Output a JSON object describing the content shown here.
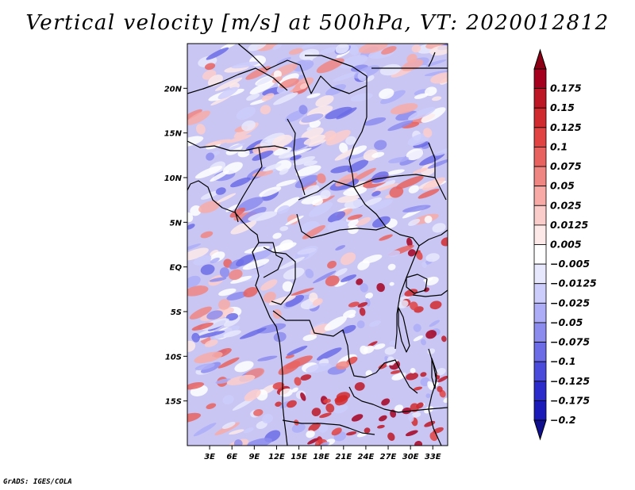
{
  "title": "Vertical velocity [m/s] at 500hPa, VT: 2020012812",
  "credit": "GrADS: IGES/COLA",
  "map": {
    "variable": "Vertical velocity",
    "units": "m/s",
    "level": "500hPa",
    "valid_time": "2020012812",
    "lon_range": [
      0,
      35
    ],
    "lat_range": [
      -20,
      25
    ],
    "lat_ticks": [
      {
        "value": 20,
        "label": "20N"
      },
      {
        "value": 15,
        "label": "15N"
      },
      {
        "value": 10,
        "label": "10N"
      },
      {
        "value": 5,
        "label": "5N"
      },
      {
        "value": 0,
        "label": "EQ"
      },
      {
        "value": -5,
        "label": "5S"
      },
      {
        "value": -10,
        "label": "10S"
      },
      {
        "value": -15,
        "label": "15S"
      }
    ],
    "lon_ticks": [
      {
        "value": 3,
        "label": "3E"
      },
      {
        "value": 6,
        "label": "6E"
      },
      {
        "value": 9,
        "label": "9E"
      },
      {
        "value": 12,
        "label": "12E"
      },
      {
        "value": 15,
        "label": "15E"
      },
      {
        "value": 18,
        "label": "18E"
      },
      {
        "value": 21,
        "label": "21E"
      },
      {
        "value": 24,
        "label": "24E"
      },
      {
        "value": 27,
        "label": "27E"
      },
      {
        "value": 30,
        "label": "30E"
      },
      {
        "value": 33,
        "label": "33E"
      }
    ]
  },
  "colorbar": {
    "levels": [
      {
        "label": "0.175",
        "color": "#a5001e"
      },
      {
        "label": "0.15",
        "color": "#bd1726"
      },
      {
        "label": "0.125",
        "color": "#d12a2e"
      },
      {
        "label": "0.1",
        "color": "#e04342"
      },
      {
        "label": "0.075",
        "color": "#e86360"
      },
      {
        "label": "0.05",
        "color": "#f08682"
      },
      {
        "label": "0.025",
        "color": "#f7aaa6"
      },
      {
        "label": "0.0125",
        "color": "#fbcdca"
      },
      {
        "label": "0.005",
        "color": "#fde9e7"
      },
      {
        "label": "−0.005",
        "color": "#ffffff"
      },
      {
        "label": "−0.0125",
        "color": "#e7e7fd"
      },
      {
        "label": "−0.025",
        "color": "#cdcdfb"
      },
      {
        "label": "−0.05",
        "color": "#adadf7"
      },
      {
        "label": "−0.075",
        "color": "#8c8cef"
      },
      {
        "label": "−0.1",
        "color": "#6c6ce6"
      },
      {
        "label": "−0.125",
        "color": "#4b4bdb"
      },
      {
        "label": "−0.175",
        "color": "#2b2bcc"
      },
      {
        "label": "−0.2",
        "color": "#1a1ab8"
      }
    ],
    "top_color": "#8a0014",
    "bottom_color": "#10108f"
  }
}
